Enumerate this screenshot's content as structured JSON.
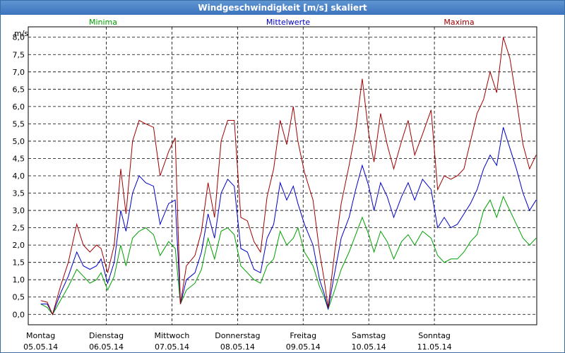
{
  "window": {
    "title": "Windgeschwindigkeit [m/s] skaliert"
  },
  "chart_data": {
    "type": "line",
    "title": "Windgeschwindigkeit [m/s] skaliert",
    "ylabel": "m/s",
    "ylim": [
      -0.3,
      8.3
    ],
    "yticks": [
      "0,0",
      "0,5",
      "1,0",
      "1,5",
      "2,0",
      "2,5",
      "3,0",
      "3,5",
      "4,0",
      "4,5",
      "5,0",
      "5,5",
      "6,0",
      "6,5",
      "7,0",
      "7,5",
      "8,0"
    ],
    "xlabels": [
      {
        "day": "Montag",
        "date": "05.05.14"
      },
      {
        "day": "Dienstag",
        "date": "06.05.14"
      },
      {
        "day": "Mittwoch",
        "date": "07.05.14"
      },
      {
        "day": "Donnerstag",
        "date": "08.05.14"
      },
      {
        "day": "Freitag",
        "date": "09.05.14"
      },
      {
        "day": "Samstag",
        "date": "10.05.14"
      },
      {
        "day": "Sonntag",
        "date": "11.05.14"
      }
    ],
    "grid": true,
    "legend_position": "top",
    "x_unit": "days since 05.05.14 00:00",
    "series": [
      {
        "name": "Minima",
        "color": "#00a000",
        "points": [
          [
            0.0,
            0.3
          ],
          [
            0.1,
            0.2
          ],
          [
            0.18,
            0.0
          ],
          [
            0.3,
            0.4
          ],
          [
            0.42,
            0.8
          ],
          [
            0.55,
            1.3
          ],
          [
            0.65,
            1.1
          ],
          [
            0.75,
            0.9
          ],
          [
            0.85,
            1.0
          ],
          [
            0.92,
            1.2
          ],
          [
            1.02,
            0.7
          ],
          [
            1.12,
            1.1
          ],
          [
            1.22,
            2.0
          ],
          [
            1.3,
            1.4
          ],
          [
            1.4,
            2.2
          ],
          [
            1.5,
            2.4
          ],
          [
            1.6,
            2.5
          ],
          [
            1.72,
            2.3
          ],
          [
            1.82,
            1.7
          ],
          [
            1.95,
            2.1
          ],
          [
            2.05,
            1.9
          ],
          [
            2.13,
            0.3
          ],
          [
            2.22,
            0.7
          ],
          [
            2.35,
            0.9
          ],
          [
            2.45,
            1.3
          ],
          [
            2.55,
            2.2
          ],
          [
            2.65,
            1.6
          ],
          [
            2.75,
            2.4
          ],
          [
            2.85,
            2.5
          ],
          [
            2.95,
            2.3
          ],
          [
            3.05,
            1.4
          ],
          [
            3.15,
            1.2
          ],
          [
            3.25,
            1.0
          ],
          [
            3.35,
            0.9
          ],
          [
            3.45,
            1.4
          ],
          [
            3.55,
            1.6
          ],
          [
            3.65,
            2.4
          ],
          [
            3.75,
            2.0
          ],
          [
            3.85,
            2.2
          ],
          [
            3.92,
            2.5
          ],
          [
            4.02,
            1.8
          ],
          [
            4.15,
            1.4
          ],
          [
            4.25,
            0.8
          ],
          [
            4.32,
            0.5
          ],
          [
            4.38,
            0.15
          ],
          [
            4.48,
            0.7
          ],
          [
            4.58,
            1.3
          ],
          [
            4.7,
            1.8
          ],
          [
            4.8,
            2.3
          ],
          [
            4.9,
            2.8
          ],
          [
            5.0,
            2.3
          ],
          [
            5.08,
            1.8
          ],
          [
            5.18,
            2.4
          ],
          [
            5.28,
            2.1
          ],
          [
            5.38,
            1.6
          ],
          [
            5.5,
            2.1
          ],
          [
            5.6,
            2.3
          ],
          [
            5.7,
            2.0
          ],
          [
            5.82,
            2.4
          ],
          [
            5.95,
            2.2
          ],
          [
            6.05,
            1.7
          ],
          [
            6.15,
            1.5
          ],
          [
            6.25,
            1.6
          ],
          [
            6.35,
            1.6
          ],
          [
            6.45,
            1.8
          ],
          [
            6.55,
            2.1
          ],
          [
            6.65,
            2.3
          ],
          [
            6.75,
            3.0
          ],
          [
            6.85,
            3.3
          ],
          [
            6.95,
            2.8
          ],
          [
            7.05,
            3.4
          ],
          [
            7.15,
            3.0
          ],
          [
            7.25,
            2.6
          ],
          [
            7.35,
            2.2
          ],
          [
            7.45,
            2.0
          ],
          [
            7.55,
            2.2
          ]
        ]
      },
      {
        "name": "Mittelwerte",
        "color": "#0000c8",
        "points": [
          [
            0.0,
            0.3
          ],
          [
            0.1,
            0.3
          ],
          [
            0.18,
            0.0
          ],
          [
            0.3,
            0.6
          ],
          [
            0.42,
            1.1
          ],
          [
            0.55,
            1.8
          ],
          [
            0.65,
            1.4
          ],
          [
            0.75,
            1.3
          ],
          [
            0.85,
            1.4
          ],
          [
            0.92,
            1.6
          ],
          [
            1.02,
            0.9
          ],
          [
            1.12,
            1.5
          ],
          [
            1.22,
            3.0
          ],
          [
            1.3,
            2.4
          ],
          [
            1.4,
            3.5
          ],
          [
            1.5,
            4.0
          ],
          [
            1.6,
            3.8
          ],
          [
            1.72,
            3.7
          ],
          [
            1.82,
            2.6
          ],
          [
            1.95,
            3.2
          ],
          [
            2.05,
            3.3
          ],
          [
            2.13,
            0.3
          ],
          [
            2.22,
            1.0
          ],
          [
            2.35,
            1.2
          ],
          [
            2.45,
            1.8
          ],
          [
            2.55,
            2.9
          ],
          [
            2.65,
            2.2
          ],
          [
            2.75,
            3.5
          ],
          [
            2.85,
            3.9
          ],
          [
            2.95,
            3.7
          ],
          [
            3.05,
            1.9
          ],
          [
            3.15,
            1.8
          ],
          [
            3.25,
            1.3
          ],
          [
            3.35,
            1.2
          ],
          [
            3.45,
            2.2
          ],
          [
            3.55,
            2.6
          ],
          [
            3.65,
            3.8
          ],
          [
            3.75,
            3.3
          ],
          [
            3.85,
            3.7
          ],
          [
            3.92,
            3.2
          ],
          [
            4.02,
            2.6
          ],
          [
            4.15,
            2.0
          ],
          [
            4.25,
            1.0
          ],
          [
            4.32,
            0.6
          ],
          [
            4.38,
            0.15
          ],
          [
            4.48,
            1.2
          ],
          [
            4.58,
            2.2
          ],
          [
            4.7,
            2.8
          ],
          [
            4.8,
            3.6
          ],
          [
            4.9,
            4.3
          ],
          [
            5.0,
            3.7
          ],
          [
            5.08,
            3.0
          ],
          [
            5.18,
            3.8
          ],
          [
            5.28,
            3.4
          ],
          [
            5.38,
            2.8
          ],
          [
            5.5,
            3.4
          ],
          [
            5.6,
            3.8
          ],
          [
            5.7,
            3.3
          ],
          [
            5.82,
            3.9
          ],
          [
            5.95,
            3.6
          ],
          [
            6.05,
            2.5
          ],
          [
            6.15,
            2.8
          ],
          [
            6.25,
            2.5
          ],
          [
            6.35,
            2.6
          ],
          [
            6.45,
            2.9
          ],
          [
            6.55,
            3.2
          ],
          [
            6.65,
            3.6
          ],
          [
            6.75,
            4.2
          ],
          [
            6.85,
            4.6
          ],
          [
            6.95,
            4.3
          ],
          [
            7.05,
            5.4
          ],
          [
            7.15,
            4.8
          ],
          [
            7.25,
            4.2
          ],
          [
            7.35,
            3.5
          ],
          [
            7.45,
            3.0
          ],
          [
            7.55,
            3.3
          ]
        ]
      },
      {
        "name": "Maxima",
        "color": "#a00000",
        "points": [
          [
            0.0,
            0.4
          ],
          [
            0.1,
            0.35
          ],
          [
            0.18,
            0.0
          ],
          [
            0.3,
            0.8
          ],
          [
            0.42,
            1.5
          ],
          [
            0.55,
            2.6
          ],
          [
            0.65,
            2.0
          ],
          [
            0.75,
            1.8
          ],
          [
            0.85,
            2.0
          ],
          [
            0.92,
            1.9
          ],
          [
            1.02,
            1.2
          ],
          [
            1.12,
            2.0
          ],
          [
            1.22,
            4.2
          ],
          [
            1.3,
            2.9
          ],
          [
            1.4,
            5.0
          ],
          [
            1.5,
            5.6
          ],
          [
            1.6,
            5.5
          ],
          [
            1.72,
            5.4
          ],
          [
            1.82,
            4.0
          ],
          [
            1.95,
            4.7
          ],
          [
            2.05,
            5.1
          ],
          [
            2.13,
            0.3
          ],
          [
            2.22,
            1.4
          ],
          [
            2.35,
            1.7
          ],
          [
            2.45,
            2.4
          ],
          [
            2.55,
            3.8
          ],
          [
            2.65,
            2.8
          ],
          [
            2.75,
            5.0
          ],
          [
            2.85,
            5.6
          ],
          [
            2.95,
            5.6
          ],
          [
            3.05,
            2.8
          ],
          [
            3.15,
            2.7
          ],
          [
            3.25,
            2.1
          ],
          [
            3.35,
            1.8
          ],
          [
            3.45,
            3.4
          ],
          [
            3.55,
            4.2
          ],
          [
            3.65,
            5.6
          ],
          [
            3.75,
            4.9
          ],
          [
            3.85,
            6.0
          ],
          [
            3.92,
            5.0
          ],
          [
            4.02,
            4.1
          ],
          [
            4.15,
            3.3
          ],
          [
            4.25,
            1.8
          ],
          [
            4.32,
            1.0
          ],
          [
            4.38,
            0.2
          ],
          [
            4.48,
            1.8
          ],
          [
            4.58,
            3.2
          ],
          [
            4.7,
            4.3
          ],
          [
            4.8,
            5.3
          ],
          [
            4.9,
            6.8
          ],
          [
            5.0,
            5.2
          ],
          [
            5.08,
            4.4
          ],
          [
            5.18,
            5.8
          ],
          [
            5.28,
            4.9
          ],
          [
            5.38,
            4.2
          ],
          [
            5.5,
            5.0
          ],
          [
            5.6,
            5.6
          ],
          [
            5.7,
            4.6
          ],
          [
            5.82,
            5.2
          ],
          [
            5.95,
            5.9
          ],
          [
            6.05,
            3.6
          ],
          [
            6.15,
            4.0
          ],
          [
            6.25,
            3.9
          ],
          [
            6.35,
            4.0
          ],
          [
            6.45,
            4.2
          ],
          [
            6.55,
            5.0
          ],
          [
            6.65,
            5.8
          ],
          [
            6.75,
            6.2
          ],
          [
            6.85,
            7.0
          ],
          [
            6.95,
            6.4
          ],
          [
            7.05,
            8.0
          ],
          [
            7.15,
            7.4
          ],
          [
            7.25,
            6.2
          ],
          [
            7.35,
            4.9
          ],
          [
            7.45,
            4.2
          ],
          [
            7.55,
            4.6
          ]
        ]
      }
    ]
  }
}
